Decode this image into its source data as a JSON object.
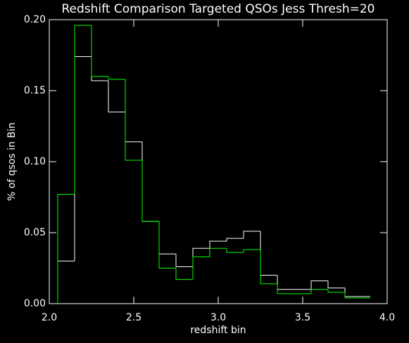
{
  "chart_data": {
    "type": "histogram",
    "title": "Redshift Comparison Targeted QSOs Jess Thresh=20",
    "xlabel": "redshift bin",
    "ylabel": "% of qsos in Bin",
    "bins": [
      2.05,
      2.15,
      2.25,
      2.35,
      2.45,
      2.55,
      2.65,
      2.75,
      2.85,
      2.95,
      3.05,
      3.15,
      3.25,
      3.35,
      3.45,
      3.55,
      3.65,
      3.75,
      3.85,
      3.9
    ],
    "series": [
      {
        "color": "#ffffff",
        "values": [
          0.03,
          0.174,
          0.157,
          0.135,
          0.114,
          0.058,
          0.035,
          0.026,
          0.039,
          0.044,
          0.046,
          0.051,
          0.02,
          0.01,
          0.01,
          0.016,
          0.011,
          0.005,
          0.005
        ]
      },
      {
        "color": "#00ff00",
        "values": [
          0.077,
          0.196,
          0.16,
          0.158,
          0.101,
          0.058,
          0.025,
          0.017,
          0.033,
          0.039,
          0.036,
          0.038,
          0.014,
          0.007,
          0.007,
          0.01,
          0.008,
          0.004,
          0.004
        ]
      }
    ],
    "xlim": [
      2.0,
      4.0
    ],
    "ylim": [
      0,
      0.2
    ],
    "xticks": [
      {
        "value": 2.0,
        "label": "2.0"
      },
      {
        "value": 2.5,
        "label": "2.5"
      },
      {
        "value": 3.0,
        "label": "3.0"
      },
      {
        "value": 3.5,
        "label": "3.5"
      },
      {
        "value": 4.0,
        "label": "4.0"
      }
    ],
    "yticks": [
      {
        "value": 0,
        "label": "0.00"
      },
      {
        "value": 0.05,
        "label": "0.05"
      },
      {
        "value": 0.1,
        "label": "0.10"
      },
      {
        "value": 0.15,
        "label": "0.15"
      },
      {
        "value": 0.2,
        "label": "0.20"
      }
    ]
  }
}
